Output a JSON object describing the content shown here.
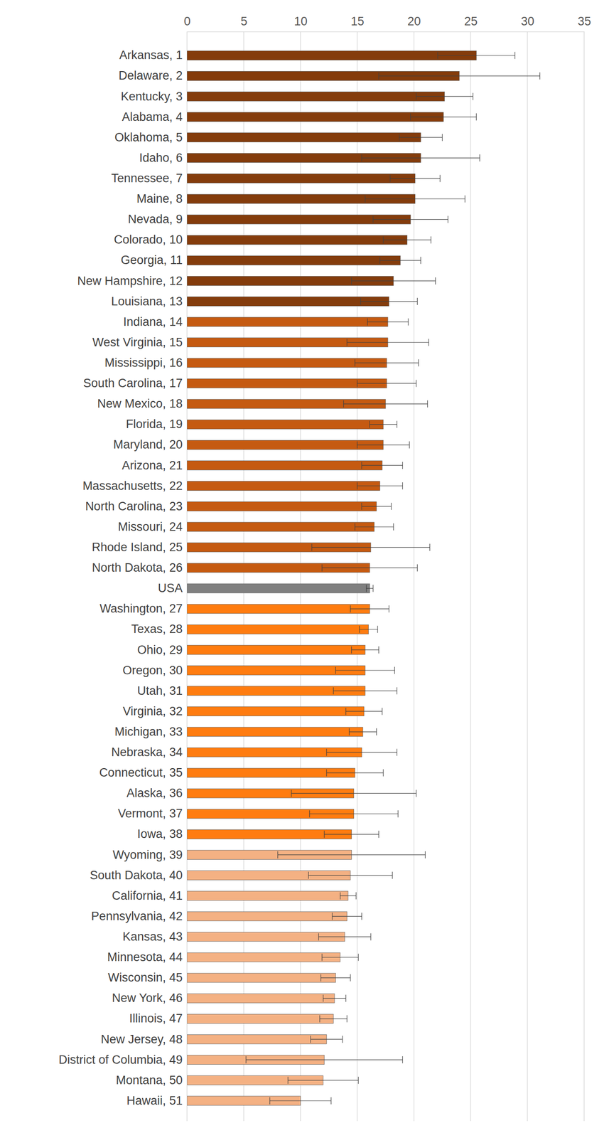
{
  "chart_data": {
    "type": "bar",
    "orientation": "horizontal",
    "grid": true,
    "categories": [
      "Arkansas, 1",
      "Delaware, 2",
      "Kentucky, 3",
      "Alabama, 4",
      "Oklahoma, 5",
      "Idaho, 6",
      "Tennessee, 7",
      "Maine, 8",
      "Nevada, 9",
      "Colorado, 10",
      "Georgia, 11",
      "New Hampshire, 12",
      "Louisiana, 13",
      "Indiana, 14",
      "West Virginia, 15",
      "Mississippi, 16",
      "South Carolina, 17",
      "New Mexico, 18",
      "Florida, 19",
      "Maryland, 20",
      "Arizona, 21",
      "Massachusetts, 22",
      "North Carolina, 23",
      "Missouri, 24",
      "Rhode Island, 25",
      "North Dakota, 26",
      "USA",
      "Washington, 27",
      "Texas, 28",
      "Ohio, 29",
      "Oregon, 30",
      "Utah, 31",
      "Virginia, 32",
      "Michigan, 33",
      "Nebraska, 34",
      "Connecticut, 35",
      "Alaska, 36",
      "Vermont, 37",
      "Iowa, 38",
      "Wyoming, 39",
      "South Dakota, 40",
      "California, 41",
      "Pennsylvania, 42",
      "Kansas, 43",
      "Minnesota, 44",
      "Wisconsin, 45",
      "New York, 46",
      "Illinois, 47",
      "New Jersey, 48",
      "District of Columbia, 49",
      "Montana, 50",
      "Hawaii, 51"
    ],
    "values": [
      25.5,
      24.0,
      22.7,
      22.6,
      20.6,
      20.6,
      20.1,
      20.1,
      19.7,
      19.4,
      18.8,
      18.2,
      17.8,
      17.7,
      17.7,
      17.6,
      17.6,
      17.5,
      17.3,
      17.3,
      17.2,
      17.0,
      16.7,
      16.5,
      16.2,
      16.1,
      16.1,
      16.1,
      16.0,
      15.7,
      15.7,
      15.7,
      15.6,
      15.5,
      15.4,
      14.8,
      14.7,
      14.7,
      14.5,
      14.5,
      14.4,
      14.2,
      14.1,
      13.9,
      13.5,
      13.1,
      13.0,
      12.9,
      12.3,
      12.1,
      12.0,
      10.0
    ],
    "errors": [
      3.4,
      7.1,
      2.5,
      2.9,
      1.9,
      5.2,
      2.2,
      4.4,
      3.3,
      2.1,
      1.8,
      3.7,
      2.5,
      1.8,
      3.6,
      2.8,
      2.6,
      3.7,
      1.2,
      2.3,
      1.8,
      2.0,
      1.3,
      1.7,
      5.2,
      4.2,
      0.3,
      1.7,
      0.8,
      1.2,
      2.6,
      2.8,
      1.6,
      1.2,
      3.1,
      2.5,
      5.5,
      3.9,
      2.4,
      6.5,
      3.7,
      0.7,
      1.3,
      2.3,
      1.6,
      1.3,
      1.0,
      1.2,
      1.4,
      6.9,
      3.1,
      2.7
    ],
    "colors": [
      "#843c0c",
      "#843c0c",
      "#843c0c",
      "#843c0c",
      "#843c0c",
      "#843c0c",
      "#843c0c",
      "#843c0c",
      "#843c0c",
      "#843c0c",
      "#843c0c",
      "#843c0c",
      "#843c0c",
      "#c55a11",
      "#c55a11",
      "#c55a11",
      "#c55a11",
      "#c55a11",
      "#c55a11",
      "#c55a11",
      "#c55a11",
      "#c55a11",
      "#c55a11",
      "#c55a11",
      "#c55a11",
      "#c55a11",
      "#808080",
      "#ff7c10",
      "#ff7c10",
      "#ff7c10",
      "#ff7c10",
      "#ff7c10",
      "#ff7c10",
      "#ff7c10",
      "#ff7c10",
      "#ff7c10",
      "#ff7c10",
      "#ff7c10",
      "#ff7c10",
      "#f4b183",
      "#f4b183",
      "#f4b183",
      "#f4b183",
      "#f4b183",
      "#f4b183",
      "#f4b183",
      "#f4b183",
      "#f4b183",
      "#f4b183",
      "#f4b183",
      "#f4b183",
      "#f4b183"
    ],
    "xlim": [
      0,
      35
    ],
    "xticks": [
      0,
      5,
      10,
      15,
      20,
      25,
      30,
      35
    ]
  }
}
